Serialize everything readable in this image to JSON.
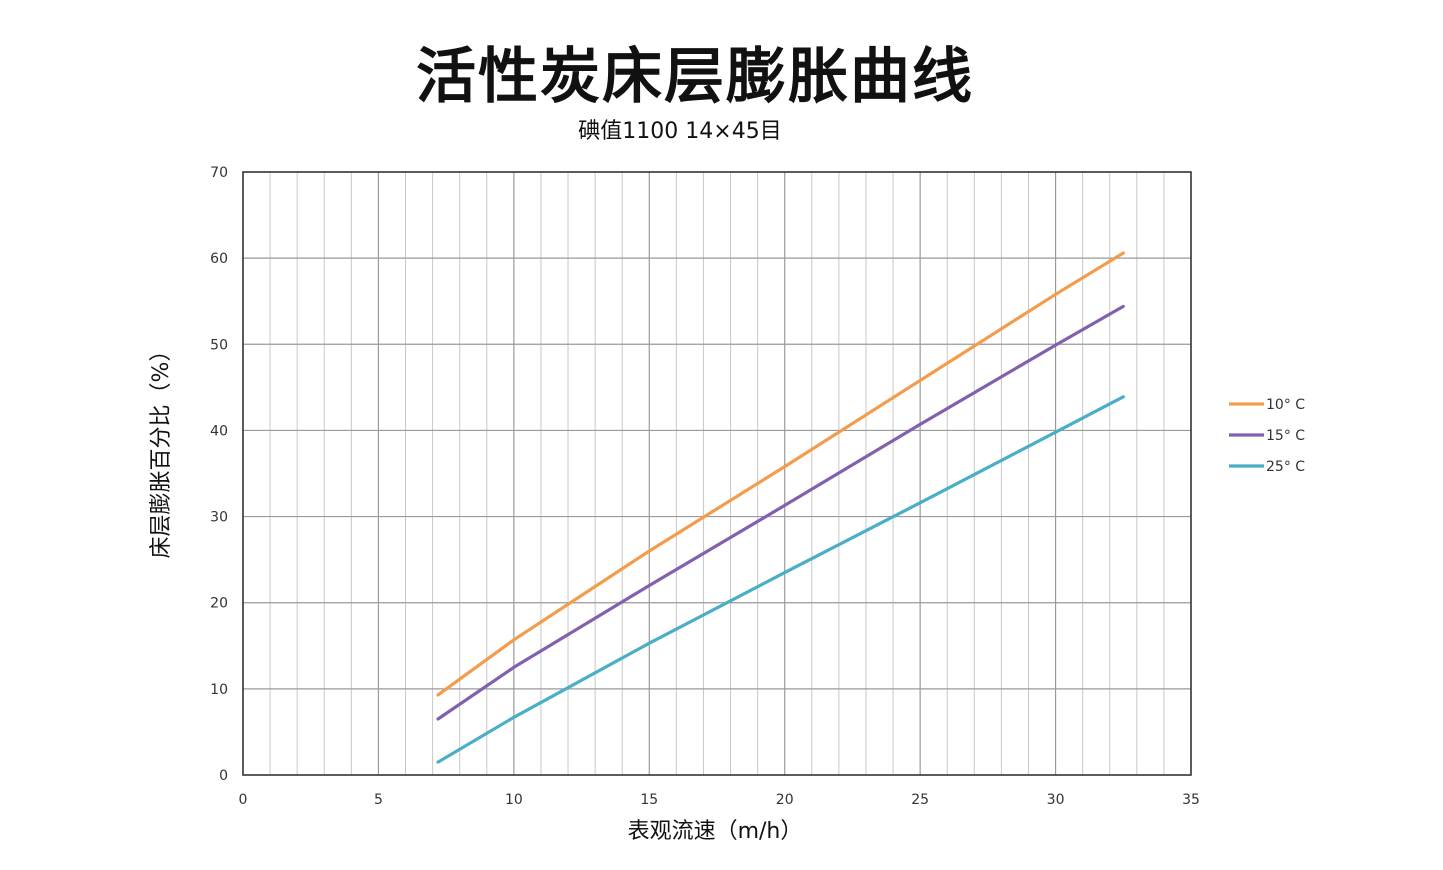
{
  "chart_data": {
    "type": "line",
    "title": "活性炭床层膨胀曲线",
    "subtitle": "碘值1100  14×45目",
    "xlabel": "表观流速（m/h）",
    "ylabel": "床层膨胀百分比（%）",
    "xlim": [
      0,
      35
    ],
    "ylim": [
      0,
      70
    ],
    "xticks": [
      0,
      5,
      10,
      15,
      20,
      25,
      30,
      35
    ],
    "yticks": [
      0,
      10,
      20,
      30,
      40,
      50,
      60,
      70
    ],
    "grid": true,
    "legend_position": "right",
    "series": [
      {
        "name": "10° C",
        "color": "#f39c4b",
        "points": [
          [
            7.2,
            9.3
          ],
          [
            10,
            15.7
          ],
          [
            15,
            26.0
          ],
          [
            20,
            35.8
          ],
          [
            25,
            45.8
          ],
          [
            30,
            55.8
          ],
          [
            32.5,
            60.6
          ]
        ]
      },
      {
        "name": "15° C",
        "color": "#8161ad",
        "points": [
          [
            7.2,
            6.5
          ],
          [
            10,
            12.5
          ],
          [
            15,
            22.0
          ],
          [
            20,
            31.3
          ],
          [
            25,
            40.7
          ],
          [
            30,
            49.9
          ],
          [
            32.5,
            54.4
          ]
        ]
      },
      {
        "name": "25° C",
        "color": "#4aaec6",
        "points": [
          [
            7.2,
            1.5
          ],
          [
            10,
            6.7
          ],
          [
            15,
            15.3
          ],
          [
            20,
            23.5
          ],
          [
            25,
            31.6
          ],
          [
            30,
            39.8
          ],
          [
            32.5,
            43.9
          ]
        ]
      }
    ]
  }
}
